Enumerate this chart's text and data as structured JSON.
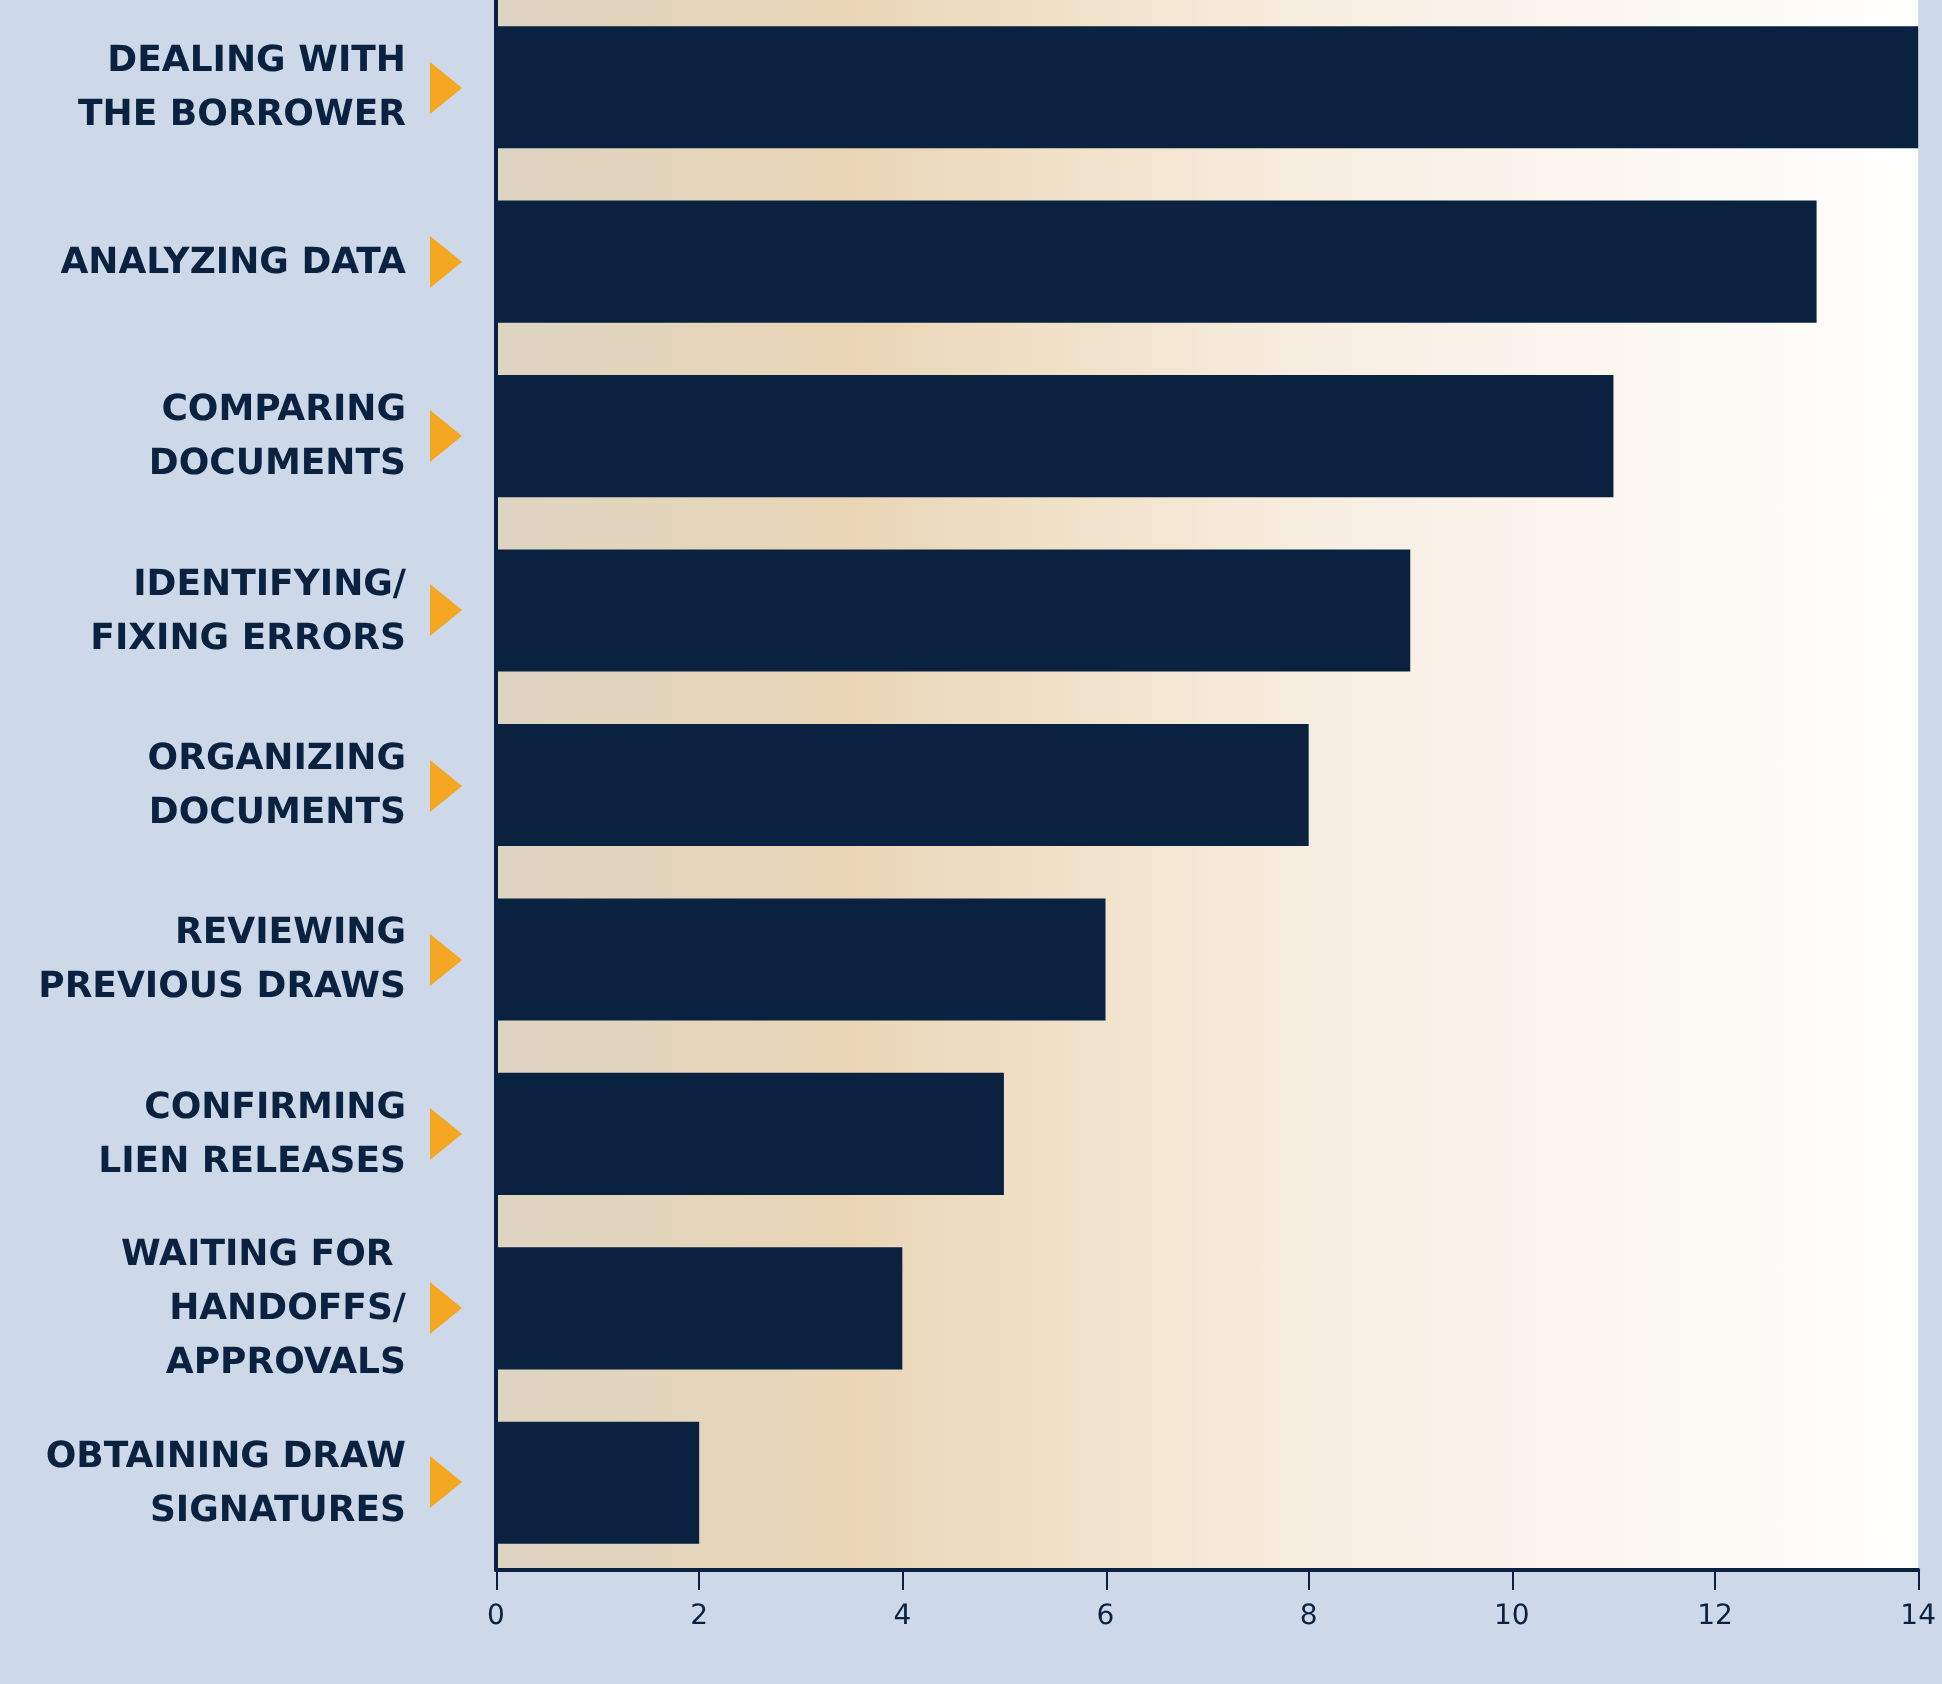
{
  "chart_data": {
    "type": "bar",
    "orientation": "horizontal",
    "categories": [
      "DEALING WITH\nTHE BORROWER",
      "ANALYZING DATA",
      "COMPARING\nDOCUMENTS",
      "IDENTIFYING/\nFIXING ERRORS",
      "ORGANIZING\nDOCUMENTS",
      "REVIEWING\nPREVIOUS DRAWS",
      "CONFIRMING\nLIEN RELEASES",
      "WAITING FOR \nHANDOFFS/\nAPPROVALS",
      "OBTAINING DRAW\nSIGNATURES"
    ],
    "values": [
      14,
      13,
      11,
      9,
      8,
      6,
      5,
      4,
      2
    ],
    "color": "#0a2240",
    "xlim": [
      0,
      14
    ],
    "xticks": [
      0,
      2,
      4,
      6,
      8,
      10,
      12,
      14
    ]
  }
}
